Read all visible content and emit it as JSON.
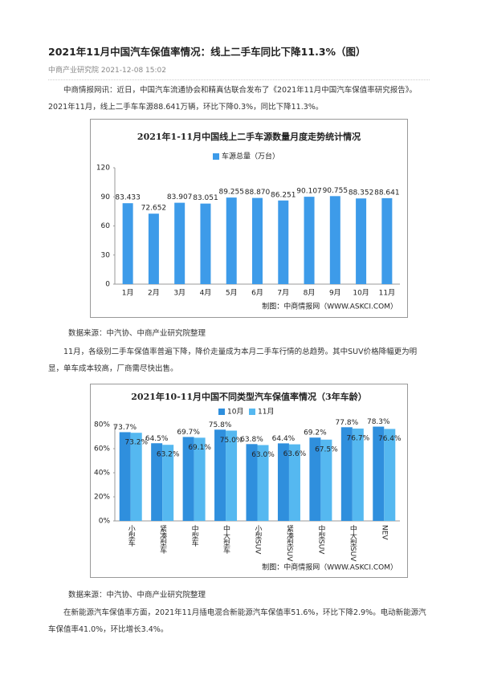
{
  "header": {
    "title": "2021年11月中国汽车保值率情况：线上二手车同比下降11.3%（图）",
    "meta": "中商产业研究院 2021-12-08 15:02"
  },
  "body": {
    "paragraphs": [
      "中商情报网讯：近日，中国汽车流通协会和精真估联合发布了《2021年11月中国汽车保值率研究报告》。2021年11月，线上二手车车源88.641万辆，环比下降0.3%，同比下降11.3%。",
      "11月，各级别二手车保值率普遍下降，降价走量成为本月二手车行情的总趋势。其中SUV价格降幅更为明显，单车成本较高，厂商需尽快出售。",
      "在新能源汽车保值率方面，2021年11月插电混合新能源汽车保值率51.6%，环比下降2.9%。电动新能源汽车保值率41.0%，环比增长3.4%。"
    ],
    "sources": [
      "数据来源：中汽协、中商产业研究院整理",
      "数据来源：中汽协、中商产业研究院整理"
    ]
  },
  "chart_data": [
    {
      "type": "bar",
      "title": "2021年1-11月中国线上二手车源数量月度走势统计情况",
      "categories": [
        "1月",
        "2月",
        "3月",
        "4月",
        "5月",
        "6月",
        "7月",
        "8月",
        "9月",
        "10月",
        "11月"
      ],
      "series": [
        {
          "name": "车源总量（万台）",
          "color": "#3d9be9",
          "values": [
            83.433,
            72.652,
            83.907,
            83.051,
            89.255,
            88.87,
            86.251,
            90.107,
            90.755,
            88.352,
            88.641
          ],
          "value_labels": [
            "83.433",
            "72.652",
            "83.907",
            "83.051",
            "89.255",
            "88.870",
            "86.251",
            "90.107",
            "90.755",
            "88.352",
            "88.641"
          ]
        }
      ],
      "ylim": [
        0,
        120
      ],
      "yticks": [
        0,
        30,
        60,
        90,
        120
      ],
      "footer": "制图：中商情报网（WWW.ASKCI.COM）"
    },
    {
      "type": "bar",
      "title": "2021年10-11月中国不同类型汽车保值率情况（3年车龄）",
      "categories": [
        "小型车",
        "紧凑型车",
        "中型车",
        "中大型车",
        "小型SUV",
        "紧凑型SUV",
        "中型SUV",
        "中大型SUV",
        "NEV"
      ],
      "series": [
        {
          "name": "10月",
          "color": "#2f8fdd",
          "values": [
            73.7,
            64.5,
            69.7,
            75.8,
            63.8,
            64.4,
            69.2,
            77.8,
            78.3
          ],
          "value_labels": [
            "73.7%",
            "64.5%",
            "69.7%",
            "75.8%",
            "63.8%",
            "64.4%",
            "69.2%",
            "77.8%",
            "78.3%"
          ]
        },
        {
          "name": "11月",
          "color": "#55b8f0",
          "values": [
            73.2,
            63.2,
            69.1,
            75.0,
            63.0,
            63.6,
            67.5,
            76.7,
            76.4
          ],
          "value_labels": [
            "73.2%",
            "63.2%",
            "69.1%",
            "75.0%",
            "63.0%",
            "63.6%",
            "67.5%",
            "76.7%",
            "76.4%"
          ]
        }
      ],
      "ylim": [
        0,
        80
      ],
      "yticks": [
        {
          "value": 0,
          "label": "0%"
        },
        {
          "value": 20,
          "label": "20%"
        },
        {
          "value": 40,
          "label": "40%"
        },
        {
          "value": 60,
          "label": "60%"
        },
        {
          "value": 80,
          "label": "80%"
        }
      ],
      "footer": "制图：中商情报网（WWW.ASKCI.COM）"
    }
  ]
}
